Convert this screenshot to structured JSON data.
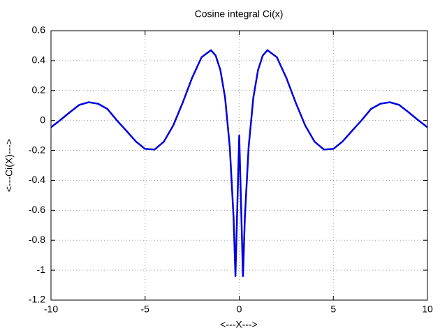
{
  "chart_data": {
    "type": "line",
    "title": "Cosine integral Ci(x)",
    "xlabel": "<---X--->",
    "ylabel": "<---Ci(X)--->",
    "x": [
      -10,
      -9.5,
      -9,
      -8.5,
      -8,
      -7.5,
      -7,
      -6.5,
      -6,
      -5.5,
      -5,
      -4.5,
      -4,
      -3.5,
      -3,
      -2.5,
      -2,
      -1.5,
      -1.25,
      -1,
      -0.75,
      -0.5,
      -0.3,
      -0.2,
      0,
      0.2,
      0.3,
      0.5,
      0.75,
      1,
      1.25,
      1.5,
      2,
      2.5,
      3,
      3.5,
      4,
      4.5,
      5,
      5.5,
      6,
      6.5,
      7,
      7.5,
      8,
      8.5,
      9,
      9.5,
      10
    ],
    "series": [
      {
        "color": "#0000e0",
        "values": [
          -0.045,
          0.003,
          0.055,
          0.104,
          0.122,
          0.112,
          0.077,
          0.001,
          -0.068,
          -0.139,
          -0.19,
          -0.194,
          -0.141,
          -0.032,
          0.12,
          0.286,
          0.423,
          0.47,
          0.434,
          0.337,
          0.152,
          -0.178,
          -0.649,
          -1.04,
          -0.1,
          -1.04,
          -0.649,
          -0.178,
          0.152,
          0.337,
          0.434,
          0.47,
          0.423,
          0.286,
          0.12,
          -0.032,
          -0.141,
          -0.194,
          -0.19,
          -0.139,
          -0.068,
          0.001,
          0.077,
          0.112,
          0.122,
          0.104,
          0.055,
          0.003,
          -0.045
        ]
      }
    ],
    "xlim": [
      -10,
      10
    ],
    "ylim": [
      -1.2,
      0.6
    ],
    "xticks": [
      -10,
      -5,
      0,
      5,
      10
    ],
    "yticks": [
      -1.2,
      -1,
      -0.8,
      -0.6,
      -0.4,
      -0.2,
      0,
      0.2,
      0.4,
      0.6
    ],
    "grid": true
  }
}
